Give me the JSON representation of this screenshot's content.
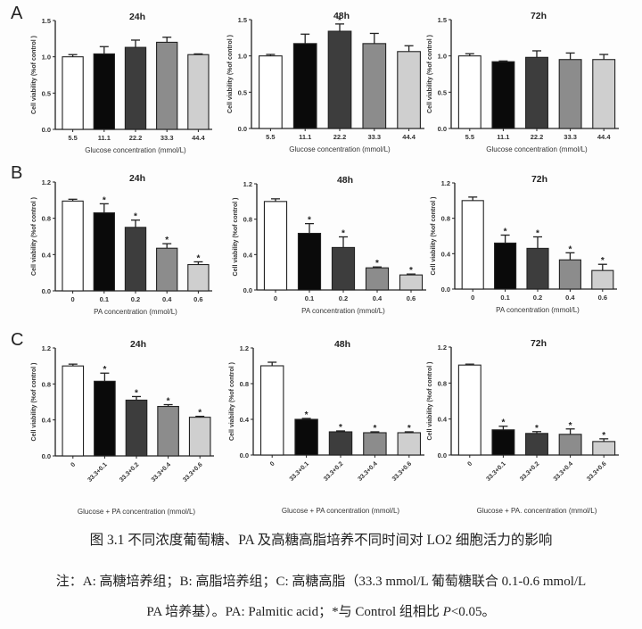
{
  "figure": {
    "panel_letters": [
      "A",
      "B",
      "C"
    ],
    "caption_title": "图 3.1 不同浓度葡萄糖、PA 及高糖高脂培养不同时间对 LO2 细胞活力的影响",
    "note_line1": "注：A: 高糖培养组；B: 高脂培养组；C: 高糖高脂（33.3 mmol/L 葡萄糖联合 0.1-0.6 mmol/L",
    "note_line2_pre": "PA 培养基）。PA: Palmitic acid；*与 Control 组相比 ",
    "note_line2_p": "P",
    "note_line2_post": "<0.05。"
  },
  "bar_colors": [
    "#ffffff",
    "#0a0a0a",
    "#3d3d3d",
    "#8c8c8c",
    "#cfcfcf"
  ],
  "chart_data": [
    {
      "type": "bar",
      "panel": "A",
      "title": "24h",
      "xlabel": "Glucose concentration (mmol/L)",
      "ylabel": "Cell viability (%of control )",
      "ylim": [
        0,
        1.5
      ],
      "yticks": [
        0.0,
        0.5,
        1.0,
        1.5
      ],
      "ytick_labels": [
        "0.0",
        "0.5",
        "1.0",
        "1.5"
      ],
      "categories": [
        "5.5",
        "11.1",
        "22.2",
        "33.3",
        "44.4"
      ],
      "values": [
        1.0,
        1.04,
        1.13,
        1.2,
        1.03
      ],
      "errors": [
        0.03,
        0.1,
        0.1,
        0.07,
        0.01
      ],
      "significant": [
        false,
        false,
        false,
        false,
        false
      ],
      "rotate_labels": false,
      "grid": false
    },
    {
      "type": "bar",
      "panel": "A",
      "title": "48h",
      "xlabel": "Glucose concentration (mmol/L)",
      "ylabel": "Cell viability (%of control )",
      "ylim": [
        0,
        1.5
      ],
      "yticks": [
        0.0,
        0.5,
        1.0,
        1.5
      ],
      "ytick_labels": [
        "0.0",
        "0.5",
        "1.0",
        "1.5"
      ],
      "categories": [
        "5.5",
        "11.1",
        "22.2",
        "33.3",
        "44.4"
      ],
      "values": [
        1.0,
        1.17,
        1.34,
        1.17,
        1.06
      ],
      "errors": [
        0.02,
        0.13,
        0.1,
        0.14,
        0.08
      ],
      "significant": [
        false,
        false,
        true,
        false,
        false
      ],
      "rotate_labels": false,
      "grid": false
    },
    {
      "type": "bar",
      "panel": "A",
      "title": "72h",
      "xlabel": "Glucose concentration (mmol/L)",
      "ylabel": "Cell viability (%of control )",
      "ylim": [
        0,
        1.5
      ],
      "yticks": [
        0.0,
        0.5,
        1.0,
        1.5
      ],
      "ytick_labels": [
        "0.0",
        "0.5",
        "1.0",
        "1.5"
      ],
      "categories": [
        "5.5",
        "11.1",
        "22.2",
        "33.3",
        "44.4"
      ],
      "values": [
        1.0,
        0.92,
        0.98,
        0.95,
        0.95
      ],
      "errors": [
        0.03,
        0.01,
        0.09,
        0.09,
        0.07
      ],
      "significant": [
        false,
        false,
        false,
        false,
        false
      ],
      "rotate_labels": false,
      "grid": false
    },
    {
      "type": "bar",
      "panel": "B",
      "title": "24h",
      "xlabel": "PA concentration (mmol/L)",
      "ylabel": "Cell viability (%of control )",
      "ylim": [
        0,
        1.2
      ],
      "yticks": [
        0.0,
        0.4,
        0.8,
        1.2
      ],
      "ytick_labels": [
        "0.0",
        "0.4",
        "0.8",
        "1.2"
      ],
      "categories": [
        "0",
        "0.1",
        "0.2",
        "0.4",
        "0.6"
      ],
      "values": [
        0.99,
        0.86,
        0.7,
        0.47,
        0.29
      ],
      "errors": [
        0.02,
        0.1,
        0.08,
        0.05,
        0.03
      ],
      "significant": [
        false,
        true,
        true,
        true,
        true
      ],
      "rotate_labels": false,
      "grid": false
    },
    {
      "type": "bar",
      "panel": "B",
      "title": "48h",
      "xlabel": "PA concentration (mmol/L)",
      "ylabel": "Cell viability (%of control )",
      "ylim": [
        0,
        1.2
      ],
      "yticks": [
        0.0,
        0.4,
        0.8,
        1.2
      ],
      "ytick_labels": [
        "0.0",
        "0.4",
        "0.8",
        "1.2"
      ],
      "categories": [
        "0",
        "0.1",
        "0.2",
        "0.4",
        "0.6"
      ],
      "values": [
        1.0,
        0.64,
        0.48,
        0.25,
        0.17
      ],
      "errors": [
        0.03,
        0.11,
        0.12,
        0.01,
        0.01
      ],
      "significant": [
        false,
        true,
        true,
        true,
        true
      ],
      "rotate_labels": false,
      "grid": false
    },
    {
      "type": "bar",
      "panel": "B",
      "title": "72h",
      "xlabel": "PA concentration (mmol/L)",
      "ylabel": "Cell viability (%of control )",
      "ylim": [
        0,
        1.2
      ],
      "yticks": [
        0.0,
        0.4,
        0.8,
        1.2
      ],
      "ytick_labels": [
        "0.0",
        "0.4",
        "0.8",
        "1.2"
      ],
      "categories": [
        "0",
        "0.1",
        "0.2",
        "0.4",
        "0.6"
      ],
      "values": [
        1.0,
        0.52,
        0.46,
        0.33,
        0.21
      ],
      "errors": [
        0.04,
        0.09,
        0.13,
        0.08,
        0.07
      ],
      "significant": [
        false,
        true,
        true,
        true,
        true
      ],
      "rotate_labels": false,
      "grid": false
    },
    {
      "type": "bar",
      "panel": "C",
      "title": "24h",
      "xlabel": "Glucose + PA concentration (mmol/L)",
      "ylabel": "Cell viability (%of control )",
      "ylim": [
        0,
        1.2
      ],
      "yticks": [
        0.0,
        0.4,
        0.8,
        1.2
      ],
      "ytick_labels": [
        "0.0",
        "0.4",
        "0.8",
        "1.2"
      ],
      "categories": [
        "0",
        "33.3+0.1",
        "33.3+0.2",
        "33.3+0.4",
        "33.3+0.6"
      ],
      "values": [
        1.0,
        0.83,
        0.62,
        0.55,
        0.43
      ],
      "errors": [
        0.02,
        0.09,
        0.04,
        0.02,
        0.01
      ],
      "significant": [
        false,
        true,
        true,
        true,
        true
      ],
      "rotate_labels": true,
      "grid": false
    },
    {
      "type": "bar",
      "panel": "C",
      "title": "48h",
      "xlabel": "Glucose + PA concentration (mmol/L)",
      "ylabel": "Cell viability (%of control )",
      "ylim": [
        0,
        1.2
      ],
      "yticks": [
        0.0,
        0.4,
        0.8,
        1.2
      ],
      "ytick_labels": [
        "0.0",
        "0.4",
        "0.8",
        "1.2"
      ],
      "categories": [
        "0",
        "33.3+0.1",
        "33.3+0.2",
        "33.3+0.4",
        "33.3+0.6"
      ],
      "values": [
        1.0,
        0.4,
        0.26,
        0.25,
        0.25
      ],
      "errors": [
        0.04,
        0.01,
        0.01,
        0.01,
        0.01
      ],
      "significant": [
        false,
        true,
        true,
        true,
        true
      ],
      "rotate_labels": true,
      "grid": false
    },
    {
      "type": "bar",
      "panel": "C",
      "title": "72h",
      "xlabel": "Glucose + PA. concentration (mmol/L)",
      "ylabel": "Cell viability (%of control )",
      "ylim": [
        0,
        1.2
      ],
      "yticks": [
        0.0,
        0.4,
        0.8,
        1.2
      ],
      "ytick_labels": [
        "0.0",
        "0.4",
        "0.8",
        "1.2"
      ],
      "categories": [
        "0",
        "33.3+0.1",
        "33.3+0.2",
        "33.3+0.4",
        "33.3+0.6"
      ],
      "values": [
        1.0,
        0.28,
        0.24,
        0.23,
        0.15
      ],
      "errors": [
        0.01,
        0.04,
        0.02,
        0.06,
        0.03
      ],
      "significant": [
        false,
        true,
        true,
        true,
        true
      ],
      "rotate_labels": true,
      "grid": false
    }
  ]
}
